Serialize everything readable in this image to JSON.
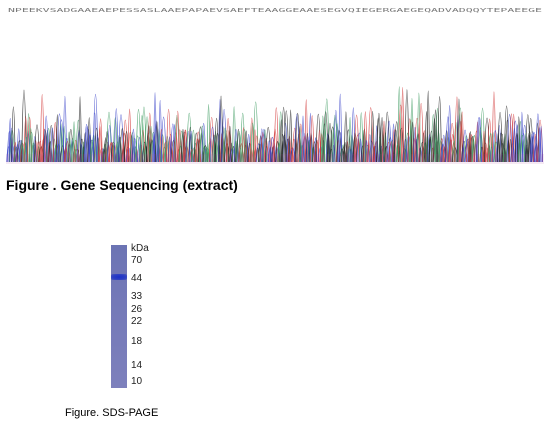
{
  "sequencing_figure": {
    "caption": "Figure . Gene Sequencing (extract)",
    "base_calls": "NPEEKVSADGAAEAEPESSASLAAEPAPAEVSAEFTEAAGGEAAESEGVQIEGERGAEGEQADVADQQYTEPAEEGE",
    "trace_colors": {
      "A": "#3c9a5f",
      "C": "#3a43c9",
      "G": "#222222",
      "T": "#d23a3a"
    }
  },
  "gel_figure": {
    "caption": "Figure. SDS-PAGE",
    "unit_label": "kDa",
    "markers": [
      "70",
      "44",
      "33",
      "26",
      "22",
      "18",
      "14",
      "10"
    ],
    "lane_color": "#7479b8",
    "band_color": "#1c31c8"
  }
}
